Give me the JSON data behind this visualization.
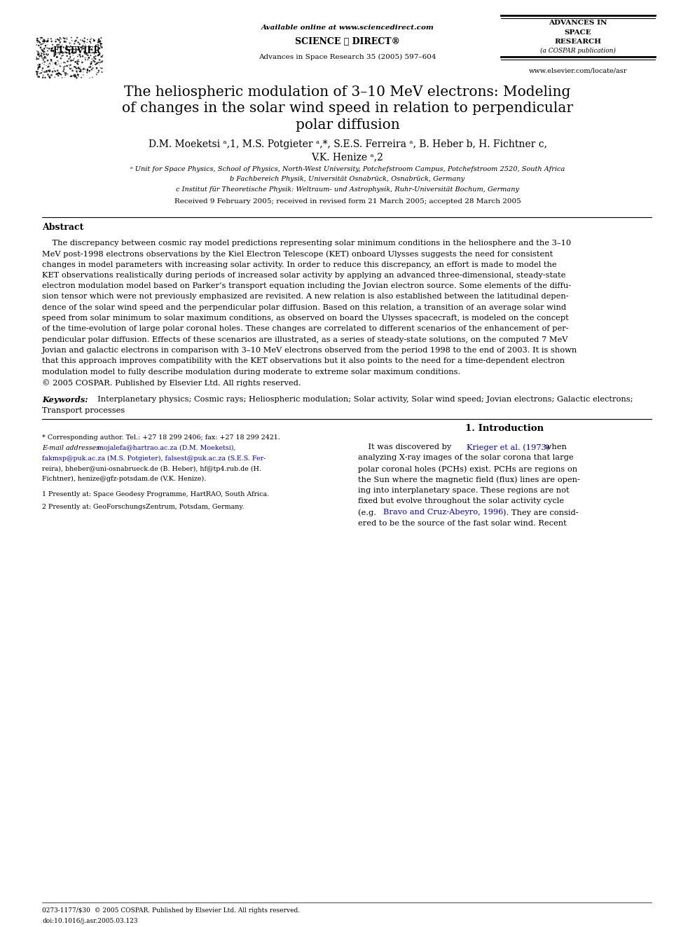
{
  "bg_color": "#ffffff",
  "text_color": "#000000",
  "page_width": 9.92,
  "page_height": 13.23,
  "header": {
    "elsevier_text": "ELSEVIER",
    "available_online": "Available online at www.sciencedirect.com",
    "sciencedirect_logo": "SCIENCE ⓓ DIRECT®",
    "journal_ref": "Advances in Space Research 35 (2005) 597–604",
    "advances_line1": "ADVANCES IN",
    "advances_line2": "SPACE",
    "advances_line3": "RESEARCH",
    "advances_line4": "(a COSPAR publication)",
    "website": "www.elsevier.com/locate/asr"
  },
  "title_line1": "The heliospheric modulation of 3–10 MeV electrons: Modeling",
  "title_line2": "of changes in the solar wind speed in relation to perpendicular",
  "title_line3": "polar diffusion",
  "authors_line1": "D.M. Moeketsi ᵃ,1, M.S. Potgieter ᵃ,*, S.E.S. Ferreira ᵃ, B. Heber b, H. Fichtner c,",
  "authors_line2": "V.K. Henize ᵃ,2",
  "affil_a": "ᵃ Unit for Space Physics, School of Physics, North-West University, Potchefstroom Campus, Potchefstroom 2520, South Africa",
  "affil_b": "b Fachbereich Physik, Universität Osnabrück, Osnabrück, Germany",
  "affil_c": "c Institut für Theoretische Physik: Weltraum- und Astrophysik, Ruhr-Universität Bochum, Germany",
  "received": "Received 9 February 2005; received in revised form 21 March 2005; accepted 28 March 2005",
  "abstract_title": "Abstract",
  "abstract_indent": "    The discrepancy between cosmic ray model predictions representing solar minimum conditions in the heliosphere and the 3–10 MeV post-1998 electrons observations by the Kiel Electron Telescope (KET) onboard Ulysses suggests the need for consistent changes in model parameters with increasing solar activity. In order to reduce this discrepancy, an effort is made to model the KET observations realistically during periods of increased solar activity by applying an advanced three-dimensional, steady-state electron modulation model based on Parker’s transport equation including the Jovian electron source. Some elements of the diffu-sion tensor which were not previously emphasized are revisited. A new relation is also established between the latitudinal depen-dence of the solar wind speed and the perpendicular polar diffusion. Based on this relation, a transition of an average solar wind speed from solar minimum to solar maximum conditions, as observed on board the Ulysses spacecraft, is modeled on the concept of the time-evolution of large polar coronal holes. These changes are correlated to different scenarios of the enhancement of per-pendicular polar diffusion. Effects of these scenarios are illustrated, as a series of steady-state solutions, on the computed 7 MeV Jovian and galactic electrons in comparison with 3–10 MeV electrons observed from the period 1998 to the end of 2003. It is shown that this approach improves compatibility with the KET observations but it also points to the need for a time-dependent electron modulation model to fully describe modulation during moderate to extreme solar maximum conditions.\n© 2005 COSPAR. Published by Elsevier Ltd. All rights reserved.",
  "keywords_label": "Keywords:",
  "keywords_line1": "  Interplanetary physics; Cosmic rays; Heliospheric modulation; Solar activity, Solar wind speed; Jovian electrons; Galactic electrons;",
  "keywords_line2": "Transport processes",
  "section_title": "1. Introduction",
  "intro_para": "It was discovered by Krieger et al. (1973) when analyzing X-ray images of the solar corona that large polar coronal holes (PCHs) exist. PCHs are regions on the Sun where the magnetic field (flux) lines are open-ing into interplanetary space. These regions are not fixed but evolve throughout the solar activity cycle (e.g. Bravo and Cruz-Abeyro, 1996). They are consid-ered to be the source of the fast solar wind. Recent",
  "footnote_star": "* Corresponding author. Tel.: +27 18 299 2406; fax: +27 18 299 2421.",
  "footnote_email_label": "E-mail addresses:",
  "footnote_emails_line1": "  mojalefa@hartrao.ac.za (D.M. Moeketsi),",
  "footnote_emails_line2": "fakmsp@puk.ac.za (M.S. Potgieter), falsest@puk.ac.za (S.E.S. Fer-",
  "footnote_emails_line3": "reira), bheber@uni-osnabrueck.de (B. Heber), hf@tp4.rub.de (H.",
  "footnote_emails_line4": "Fichtner), henize@gfz-potsdam.de (V.K. Henize).",
  "footnote_1": "1 Presently at: Space Geodesy Programme, HartRAO, South Africa.",
  "footnote_2": "2 Presently at: GeoForschungsZentrum, Potsdam, Germany.",
  "bottom_line1": "0273-1177/$30  © 2005 COSPAR. Published by Elsevier Ltd. All rights reserved.",
  "bottom_line2": "doi:10.1016/j.asr.2005.03.123"
}
